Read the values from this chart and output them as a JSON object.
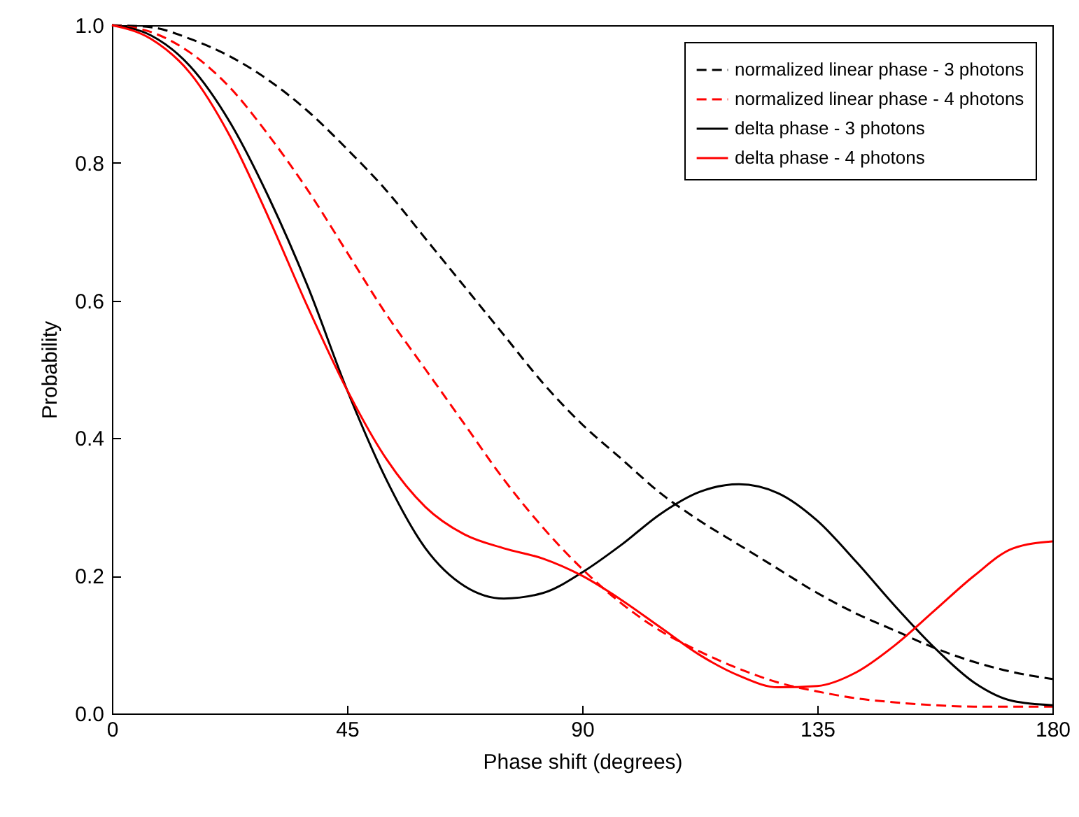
{
  "chart_data": {
    "type": "line",
    "xlabel": "Phase shift (degrees)",
    "ylabel": "Probability",
    "x": [
      0,
      7.5,
      15,
      22.5,
      30,
      37.5,
      45,
      52.5,
      60,
      67.5,
      75,
      82.5,
      90,
      97.5,
      105,
      112.5,
      120,
      127.5,
      135,
      142.5,
      150,
      157.5,
      165,
      172.5,
      180
    ],
    "series": [
      {
        "name": "normalized linear phase - 3 photons",
        "color": "#000000",
        "line_style": "dashed",
        "values": [
          1.0,
          0.997,
          0.98,
          0.955,
          0.92,
          0.875,
          0.82,
          0.76,
          0.69,
          0.62,
          0.55,
          0.48,
          0.42,
          0.37,
          0.32,
          0.28,
          0.245,
          0.21,
          0.175,
          0.145,
          0.12,
          0.095,
          0.075,
          0.06,
          0.05
        ]
      },
      {
        "name": "normalized linear phase - 4 photons",
        "color": "#ff0000",
        "line_style": "dashed",
        "values": [
          1.0,
          0.99,
          0.96,
          0.91,
          0.84,
          0.76,
          0.67,
          0.58,
          0.5,
          0.42,
          0.34,
          0.27,
          0.21,
          0.16,
          0.12,
          0.09,
          0.065,
          0.045,
          0.032,
          0.022,
          0.016,
          0.012,
          0.01,
          0.01,
          0.01
        ]
      },
      {
        "name": "delta phase - 3 photons",
        "color": "#000000",
        "line_style": "solid",
        "values": [
          1.0,
          0.985,
          0.94,
          0.86,
          0.75,
          0.62,
          0.47,
          0.34,
          0.24,
          0.185,
          0.167,
          0.175,
          0.205,
          0.245,
          0.29,
          0.322,
          0.333,
          0.32,
          0.28,
          0.22,
          0.155,
          0.095,
          0.045,
          0.018,
          0.012
        ]
      },
      {
        "name": "delta phase - 4 photons",
        "color": "#ff0000",
        "line_style": "solid",
        "values": [
          1.0,
          0.98,
          0.93,
          0.84,
          0.72,
          0.59,
          0.47,
          0.37,
          0.3,
          0.26,
          0.24,
          0.225,
          0.2,
          0.165,
          0.125,
          0.085,
          0.055,
          0.038,
          0.04,
          0.06,
          0.1,
          0.15,
          0.2,
          0.24,
          0.25
        ]
      }
    ],
    "xlim": [
      0,
      180
    ],
    "xticks": [
      0,
      45,
      90,
      135,
      180
    ],
    "ylim": [
      0.0,
      1.0
    ],
    "yticks": [
      {
        "value": 0,
        "label": "0.0"
      },
      0.2,
      0.4,
      0.6,
      0.8,
      {
        "value": 1,
        "label": "1.0"
      }
    ],
    "legend": "top right",
    "grid": false
  }
}
